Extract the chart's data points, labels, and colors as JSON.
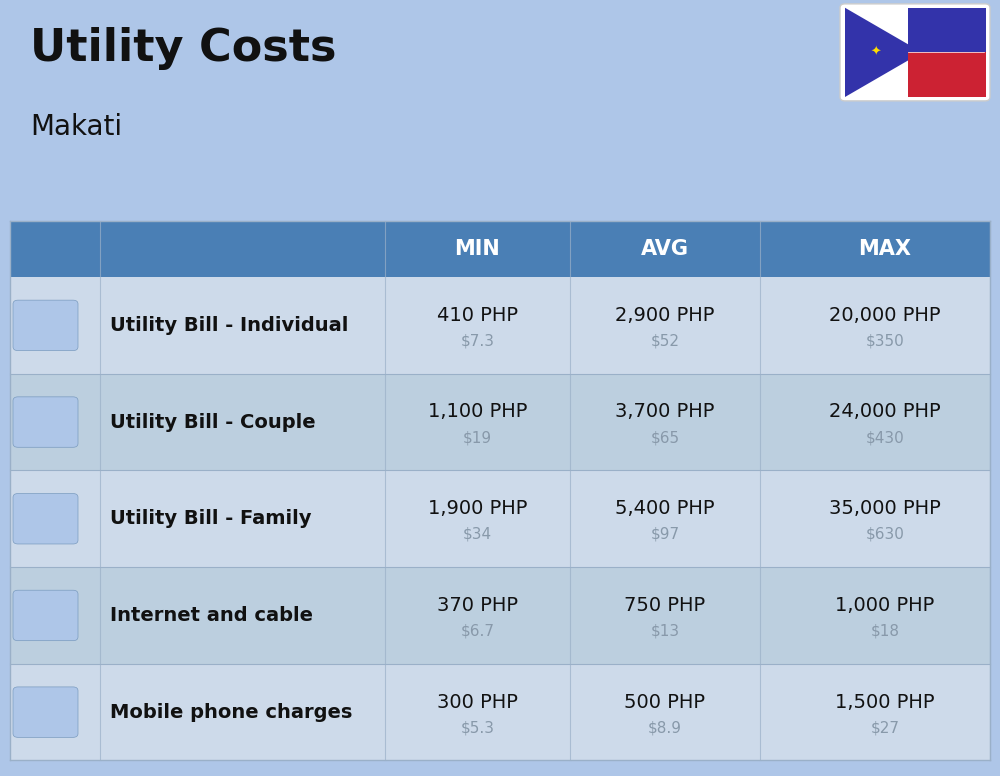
{
  "title": "Utility Costs",
  "subtitle": "Makati",
  "background_color": "#aec6e8",
  "header_color": "#4a7fb5",
  "header_text_color": "#ffffff",
  "row_color_odd": "#cddaea",
  "row_color_even": "#bccfdf",
  "col_headers": [
    "MIN",
    "AVG",
    "MAX"
  ],
  "rows": [
    {
      "label": "Utility Bill - Individual",
      "min_php": "410 PHP",
      "min_usd": "$7.3",
      "avg_php": "2,900 PHP",
      "avg_usd": "$52",
      "max_php": "20,000 PHP",
      "max_usd": "$350"
    },
    {
      "label": "Utility Bill - Couple",
      "min_php": "1,100 PHP",
      "min_usd": "$19",
      "avg_php": "3,700 PHP",
      "avg_usd": "$65",
      "max_php": "24,000 PHP",
      "max_usd": "$430"
    },
    {
      "label": "Utility Bill - Family",
      "min_php": "1,900 PHP",
      "min_usd": "$34",
      "avg_php": "5,400 PHP",
      "avg_usd": "$97",
      "max_php": "35,000 PHP",
      "max_usd": "$630"
    },
    {
      "label": "Internet and cable",
      "min_php": "370 PHP",
      "min_usd": "$6.7",
      "avg_php": "750 PHP",
      "avg_usd": "$13",
      "max_php": "1,000 PHP",
      "max_usd": "$18"
    },
    {
      "label": "Mobile phone charges",
      "min_php": "300 PHP",
      "min_usd": "$5.3",
      "avg_php": "500 PHP",
      "avg_usd": "$8.9",
      "max_php": "1,500 PHP",
      "max_usd": "$27"
    }
  ],
  "title_fontsize": 32,
  "subtitle_fontsize": 20,
  "header_fontsize": 15,
  "label_fontsize": 14,
  "value_fontsize": 14,
  "usd_fontsize": 11,
  "usd_color": "#8899aa",
  "label_color": "#111111",
  "line_color": "#9ab0c8",
  "title_color": "#111111"
}
